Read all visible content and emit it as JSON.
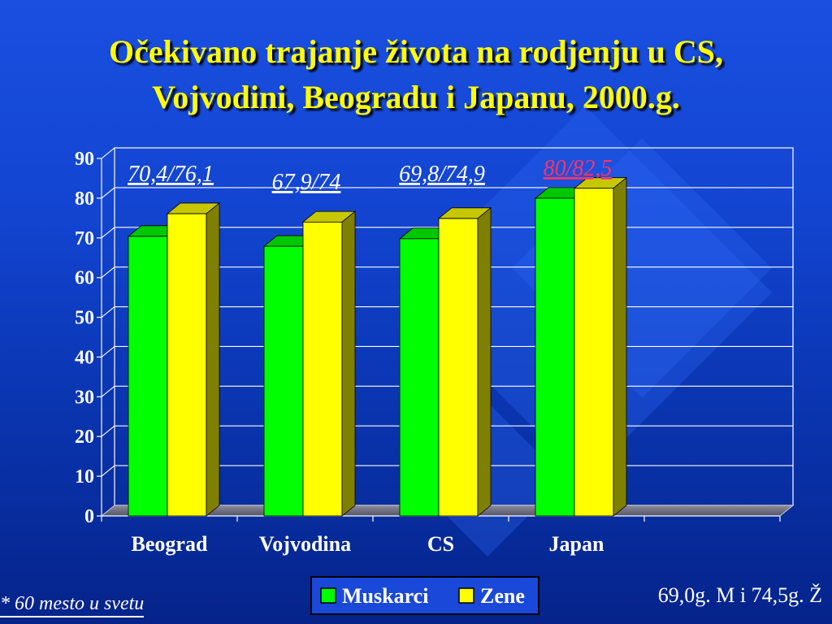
{
  "slide": {
    "title_line1": "Očekivano trajanje života na rodjenju u CS,",
    "title_line2": "Vojvodini,  Beogradu i Japanu, 2000.g.",
    "footnote": "* 60 mesto u svetu",
    "side_note": "69,0g. M i 74,5g. Ž"
  },
  "colors": {
    "title": "#ffff00",
    "muskarci": "#00ff00",
    "zene": "#ffff00",
    "highlight_label": "#ff3366",
    "label": "#ffffff"
  },
  "chart_data": {
    "type": "bar",
    "categories": [
      "Beograd",
      "Vojvodina",
      "CS",
      "Japan"
    ],
    "series": [
      {
        "name": "Muskarci",
        "values": [
          70.4,
          67.9,
          69.8,
          80
        ]
      },
      {
        "name": "Zene",
        "values": [
          76.1,
          74,
          74.9,
          82.5
        ]
      }
    ],
    "annotations": [
      "70,4/76,1",
      "67,9/74",
      "69,8/74,9",
      "80/82,5"
    ],
    "ylim": [
      0,
      90
    ],
    "yticks": [
      0,
      10,
      20,
      30,
      40,
      50,
      60,
      70,
      80,
      90
    ],
    "grid": true,
    "legend": "bottom-center",
    "title": "",
    "xlabel": "",
    "ylabel": ""
  }
}
